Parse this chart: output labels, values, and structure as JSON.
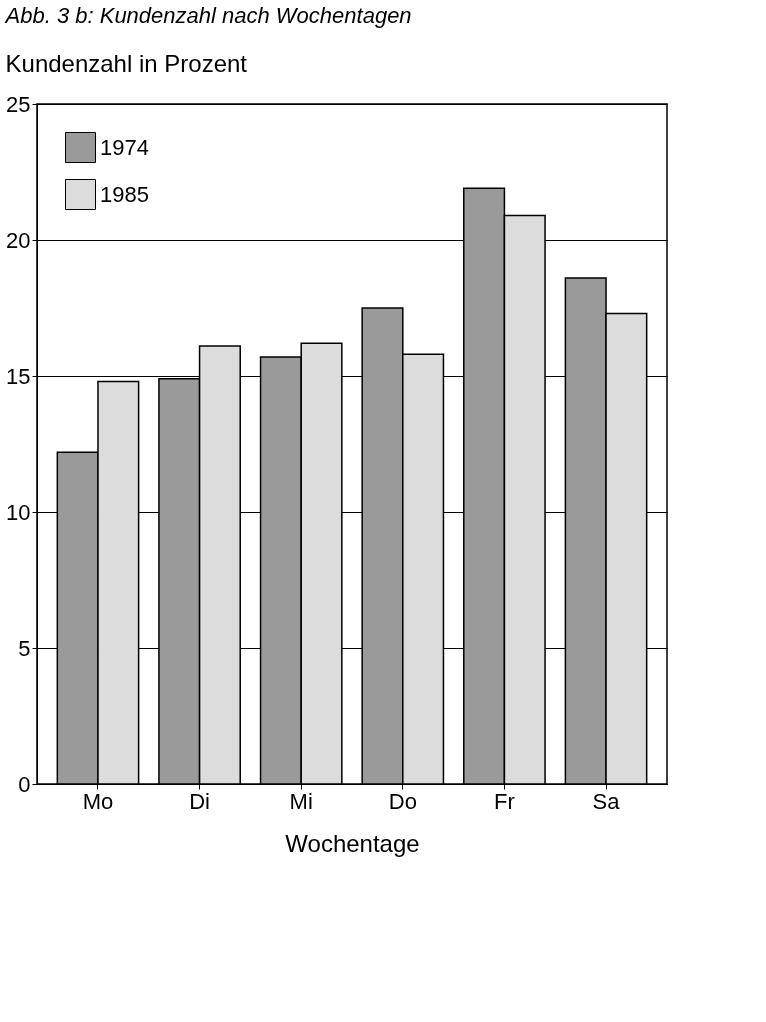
{
  "chart_data": {
    "type": "bar",
    "title": "Abb. 3 b: Kundenzahl nach Wochentagen",
    "ylabel": "Kundenzahl in Prozent",
    "xlabel": "Wochentage",
    "categories": [
      "Mo",
      "Di",
      "Mi",
      "Do",
      "Fr",
      "Sa"
    ],
    "series": [
      {
        "name": "1974",
        "color": "#9a9a9a",
        "values": [
          12.2,
          14.9,
          15.7,
          17.5,
          21.9,
          18.6
        ]
      },
      {
        "name": "1985",
        "color": "#dcdcdc",
        "values": [
          14.8,
          16.1,
          16.2,
          15.8,
          20.9,
          17.3
        ]
      }
    ],
    "ylim": [
      0,
      25
    ],
    "yticks": [
      0,
      5,
      10,
      15,
      20,
      25
    ],
    "grid": "y",
    "legend": "top left"
  }
}
